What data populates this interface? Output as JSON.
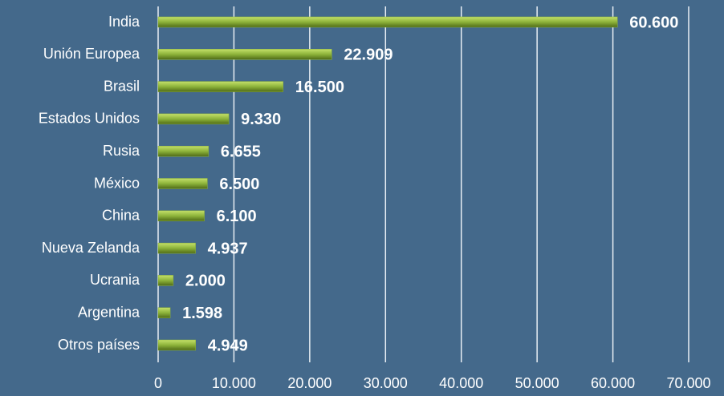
{
  "chart_data": {
    "type": "bar",
    "orientation": "horizontal",
    "categories": [
      "India",
      "Unión Europea",
      "Brasil",
      "Estados Unidos",
      "Rusia",
      "México",
      "China",
      "Nueva Zelanda",
      "Ucrania",
      "Argentina",
      "Otros países"
    ],
    "values": [
      60600,
      22909,
      16500,
      9330,
      6655,
      6500,
      6100,
      4937,
      2000,
      1598,
      4949
    ],
    "value_labels": [
      "60.600",
      "22.909",
      "16.500",
      "9.330",
      "6.655",
      "6.500",
      "6.100",
      "4.937",
      "2.000",
      "1.598",
      "4.949"
    ],
    "color": "#8db33a",
    "xlim": [
      0,
      70000
    ],
    "xticks": [
      0,
      {
        "value": 10000,
        "label": "10.000"
      },
      {
        "value": 20000,
        "label": "20.000"
      },
      {
        "value": 30000,
        "label": "30.000"
      },
      {
        "value": 40000,
        "label": "40.000"
      },
      {
        "value": 50000,
        "label": "50.000"
      },
      {
        "value": 60000,
        "label": "60.000"
      },
      {
        "value": 70000,
        "label": "70.000"
      }
    ],
    "grid": true
  }
}
